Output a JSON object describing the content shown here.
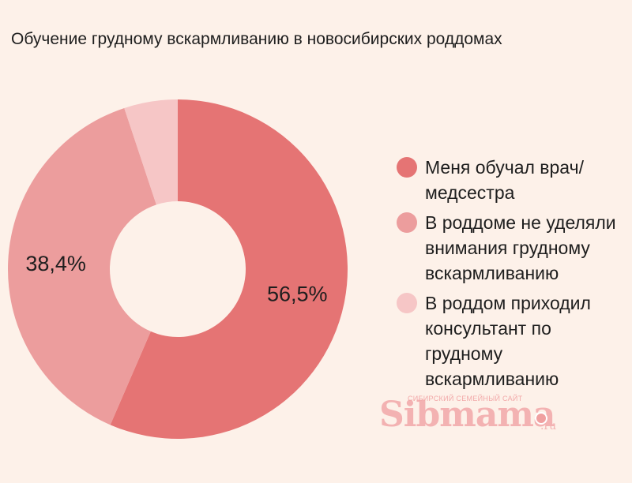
{
  "chart_data": {
    "type": "pie",
    "title": "Обучение грудному вскармливанию в новосибирских роддомах",
    "slices": [
      {
        "label": "Меня обучал врач/ медсестра",
        "value": 56.5,
        "value_label": "56,5%",
        "color": "#e57474"
      },
      {
        "label": "В роддоме не уделяли внимания грудному вскармливанию",
        "value": 38.4,
        "value_label": "38,4%",
        "color": "#ec9d9d"
      },
      {
        "label": "В роддом приходил консультант по грудному вскармливанию",
        "value": 5.1,
        "value_label": "",
        "color": "#f6c6c6"
      }
    ],
    "donut": true,
    "start_angle": "12 o'clock, clockwise",
    "legend_position": "right"
  },
  "watermark": {
    "logo": "Sibmama",
    "domain": ".ru",
    "tagline": "СИБИРСКИЙ СЕМЕЙНЫЙ САЙТ"
  }
}
